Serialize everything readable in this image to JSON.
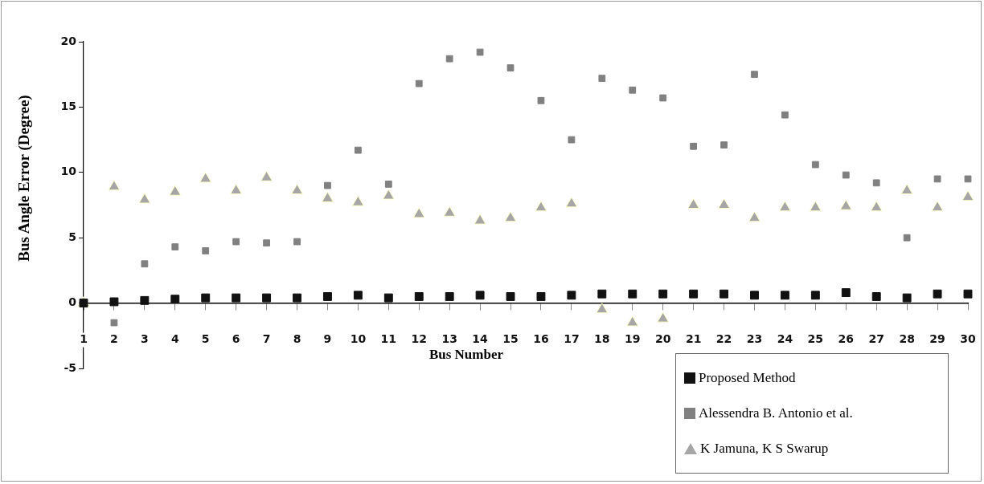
{
  "chart_data": {
    "type": "scatter",
    "xlabel": "Bus Number",
    "ylabel": "Bus Angle Error (Degree)",
    "categories": [
      "1",
      "2",
      "3",
      "4",
      "5",
      "6",
      "7",
      "8",
      "9",
      "10",
      "11",
      "12",
      "13",
      "14",
      "15",
      "16",
      "17",
      "18",
      "19",
      "20",
      "21",
      "22",
      "23",
      "24",
      "25",
      "26",
      "27",
      "28",
      "29",
      "30"
    ],
    "ylim": [
      -5,
      20
    ],
    "yticks": [
      -5,
      0,
      5,
      10,
      15,
      20
    ],
    "legend": "bottom right",
    "series": [
      {
        "name": "Proposed Method",
        "color": "#111111",
        "marker": "square",
        "values": [
          0,
          0.1,
          0.2,
          0.3,
          0.4,
          0.4,
          0.4,
          0.4,
          0.5,
          0.6,
          0.4,
          0.5,
          0.5,
          0.6,
          0.5,
          0.5,
          0.6,
          0.7,
          0.7,
          0.7,
          0.7,
          0.7,
          0.6,
          0.6,
          0.6,
          0.8,
          0.5,
          0.4,
          0.7,
          0.7
        ]
      },
      {
        "name": "Alessendra B. Antonio et al.",
        "color": "#808080",
        "marker": "square",
        "values": [
          null,
          -1.5,
          3.0,
          4.3,
          4.0,
          4.7,
          4.6,
          4.7,
          9.0,
          11.7,
          9.1,
          16.8,
          18.7,
          19.2,
          18.0,
          15.5,
          12.5,
          17.2,
          16.3,
          15.7,
          12.0,
          12.1,
          17.5,
          14.4,
          10.6,
          9.8,
          9.2,
          5.0,
          9.5,
          9.5
        ]
      },
      {
        "name": "K Jamuna, K S Swarup",
        "color": "#a6a6a6",
        "marker": "triangle",
        "values": [
          0,
          8.9,
          7.9,
          8.5,
          9.5,
          8.6,
          9.6,
          8.6,
          8.0,
          7.7,
          8.2,
          6.8,
          6.9,
          6.3,
          6.5,
          7.3,
          7.6,
          -0.5,
          -1.5,
          -1.2,
          7.5,
          7.5,
          6.5,
          7.3,
          7.3,
          7.4,
          7.3,
          8.6,
          7.3,
          8.1
        ]
      }
    ]
  }
}
